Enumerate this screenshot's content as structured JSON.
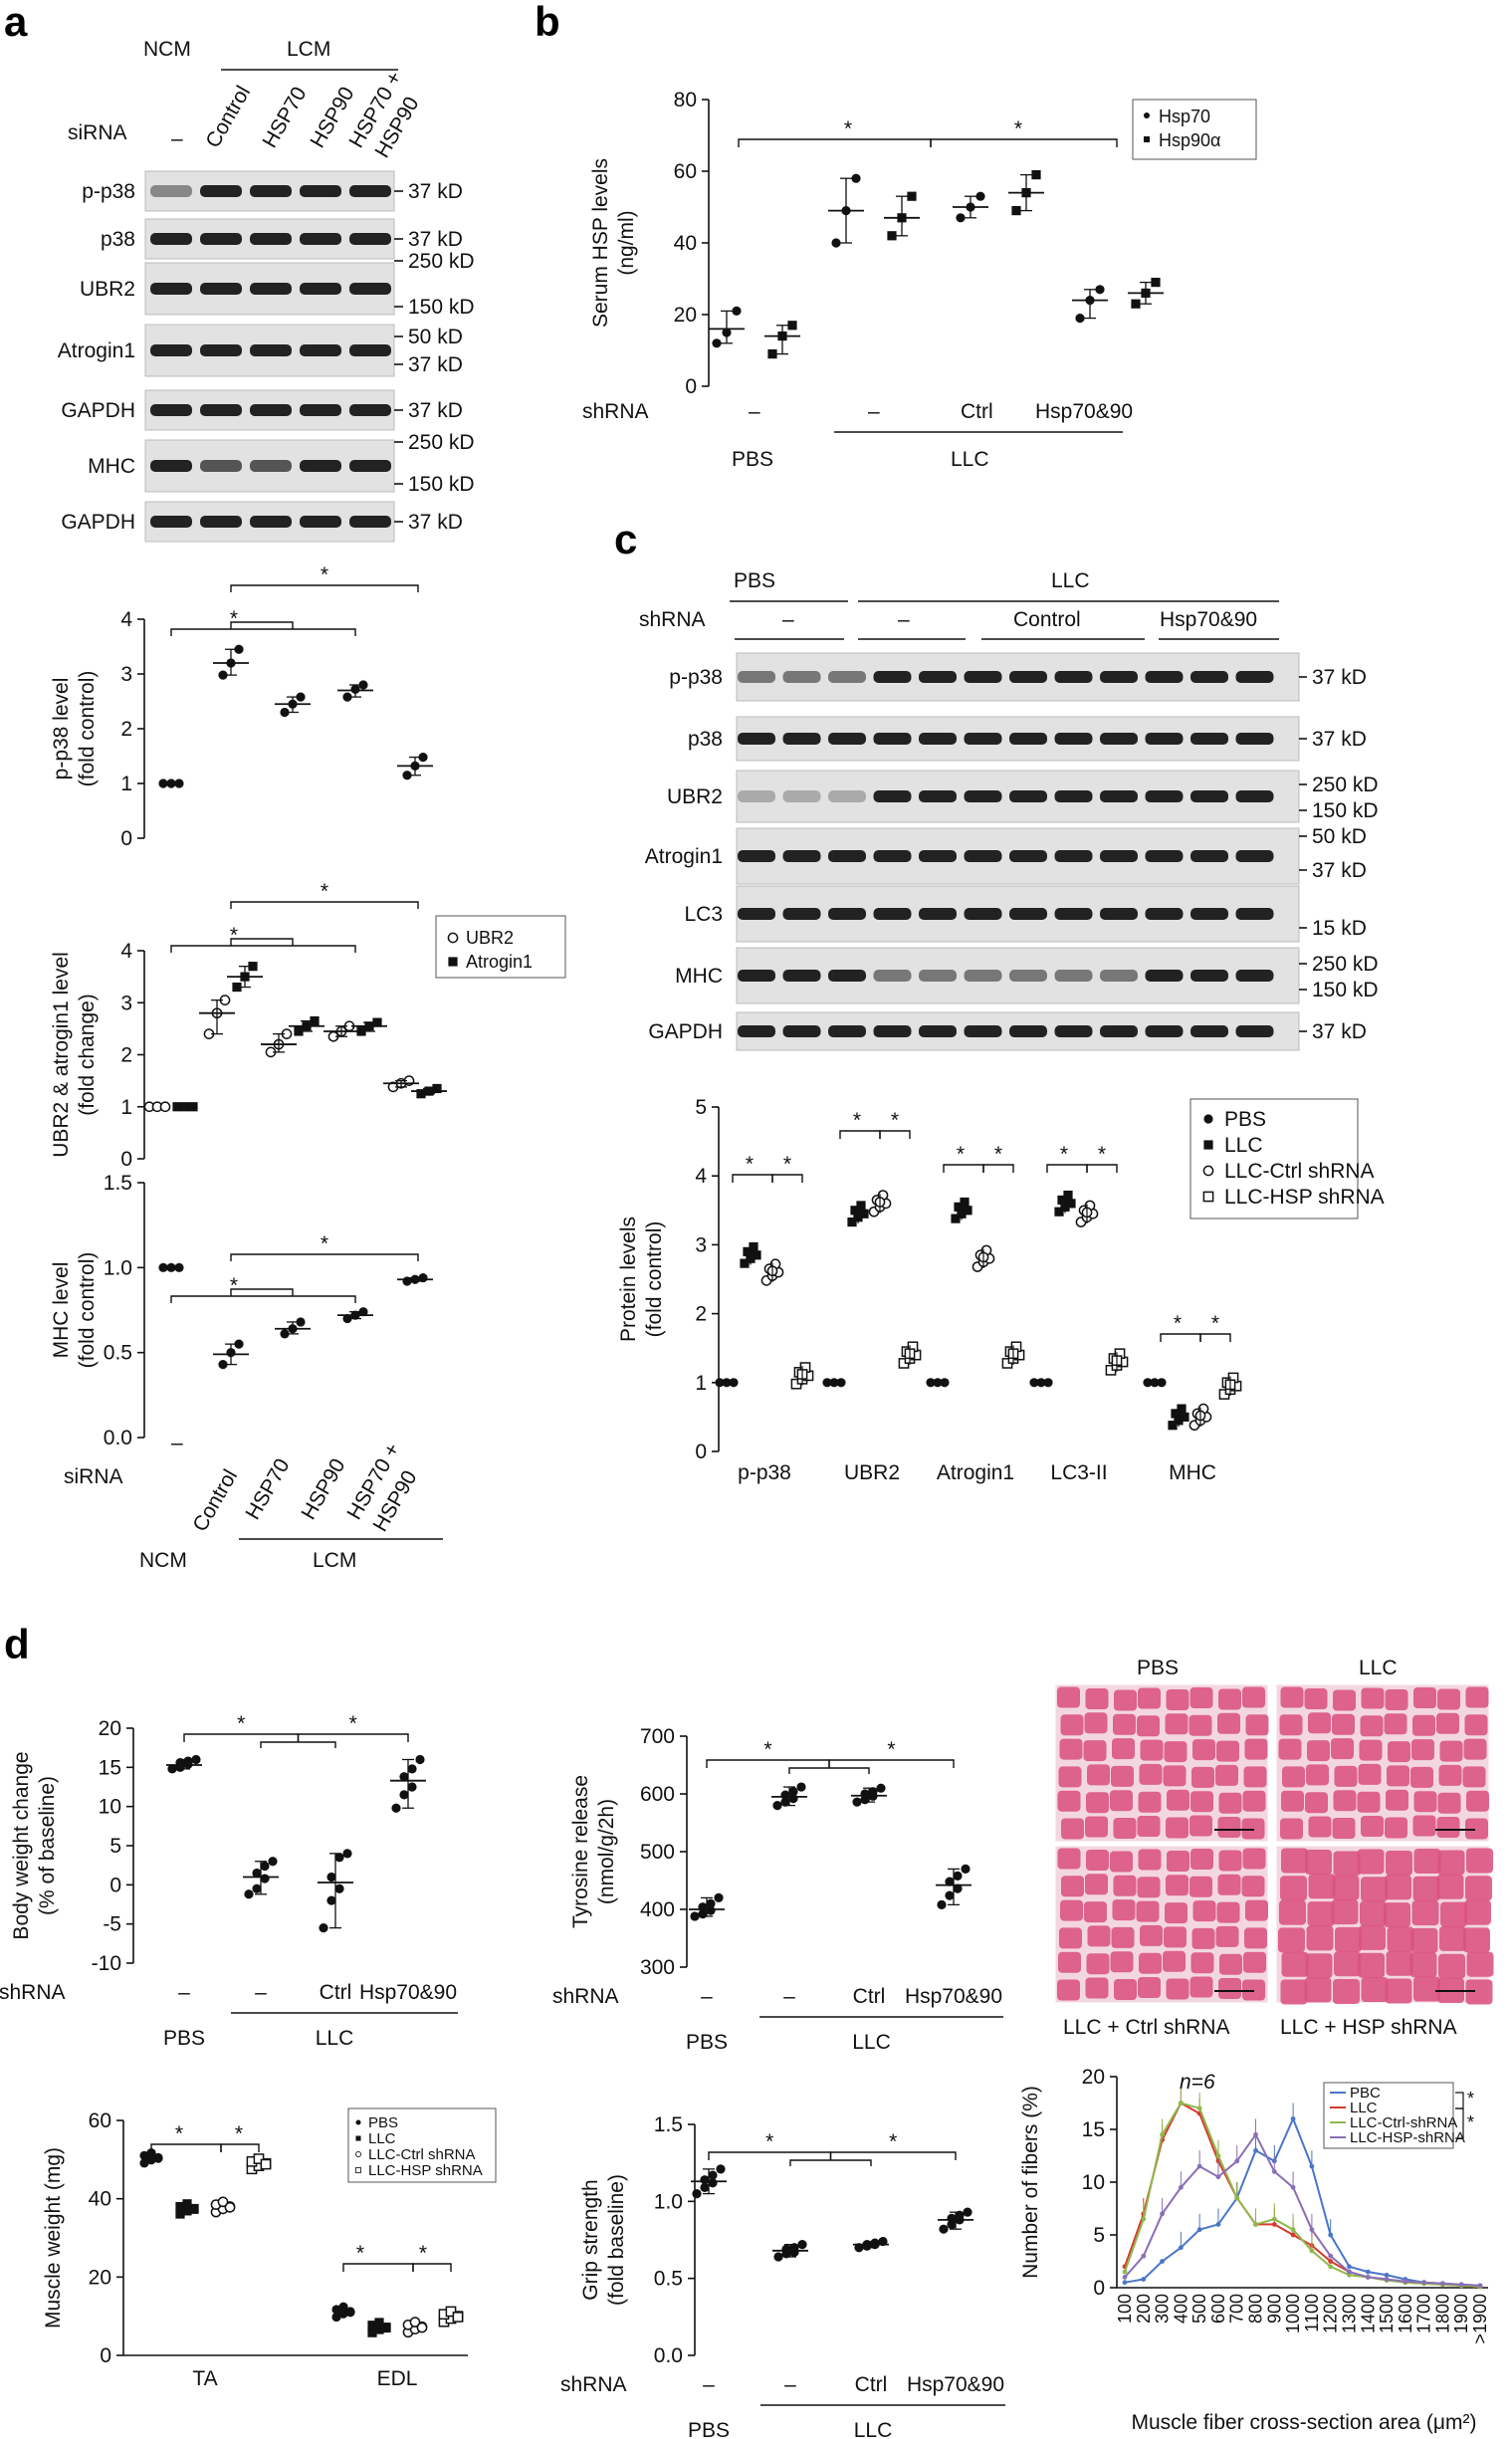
{
  "panels": {
    "a": "a",
    "b": "b",
    "c": "c",
    "d": "d"
  },
  "common": {
    "siRNA": "siRNA",
    "shRNA": "shRNA",
    "NCM": "NCM",
    "LCM": "LCM",
    "dash": "–",
    "PBS": "PBS",
    "LLC": "LLC",
    "Ctrl": "Ctrl",
    "Control": "Control",
    "Hsp70and90": "Hsp70&90",
    "star": "*",
    "HSP70": "HSP70",
    "HSP90": "HSP90",
    "HSP70_HSP90_line1": "HSP70 +",
    "HSP70_HSP90_line2": "HSP90"
  },
  "blot_a": {
    "lanes": [
      "–",
      "Control",
      "HSP70",
      "HSP90",
      "HSP70 + HSP90"
    ],
    "rows": [
      {
        "label": "p-p38",
        "mw": [
          "37 kD"
        ]
      },
      {
        "label": "p38",
        "mw": [
          "37 kD"
        ]
      },
      {
        "label": "UBR2",
        "mw": [
          "250 kD",
          "150 kD"
        ]
      },
      {
        "label": "Atrogin1",
        "mw": [
          "50 kD",
          "37 kD"
        ]
      },
      {
        "label": "GAPDH",
        "mw": [
          "37 kD"
        ]
      },
      {
        "label": "MHC",
        "mw": [
          "250 kD",
          "150 kD"
        ]
      },
      {
        "label": "GAPDH",
        "mw": [
          "37 kD"
        ]
      }
    ]
  },
  "blot_c": {
    "rows": [
      {
        "label": "p-p38",
        "mw": [
          "37 kD"
        ]
      },
      {
        "label": "p38",
        "mw": [
          "37 kD"
        ]
      },
      {
        "label": "UBR2",
        "mw": [
          "250 kD",
          "150 kD"
        ]
      },
      {
        "label": "Atrogin1",
        "mw": [
          "50 kD",
          "37 kD"
        ]
      },
      {
        "label": "LC3",
        "mw": [
          "15 kD"
        ]
      },
      {
        "label": "MHC",
        "mw": [
          "250 kD",
          "150 kD"
        ]
      },
      {
        "label": "GAPDH",
        "mw": [
          "37 kD"
        ]
      }
    ]
  },
  "histology": {
    "col_labels": [
      "PBS",
      "LLC"
    ],
    "row_labels": [
      "LLC + Ctrl shRNA",
      "LLC + HSP shRNA"
    ],
    "tissue_color": "#d9527f",
    "background_color": "#f3d7e0"
  },
  "chart_data": [
    {
      "id": "a1",
      "type": "scatter",
      "ylabel": "p-p38 level\n(fold control)",
      "ylim": [
        0,
        4
      ],
      "yticks": [
        0,
        1,
        2,
        3,
        4
      ],
      "categories": [
        "–",
        "Control",
        "HSP70",
        "HSP90",
        "HSP70 + HSP90"
      ],
      "series": [
        {
          "marker": "dot",
          "means": [
            1.0,
            3.2,
            2.45,
            2.7,
            1.32
          ],
          "points": [
            [
              1.0,
              1.0,
              1.0
            ],
            [
              2.98,
              3.2,
              3.45
            ],
            [
              2.3,
              2.45,
              2.58
            ],
            [
              2.58,
              2.72,
              2.8
            ],
            [
              1.15,
              1.32,
              1.48
            ]
          ]
        }
      ],
      "annotations": [
        "*",
        "*"
      ]
    },
    {
      "id": "a2",
      "type": "scatter",
      "ylabel": "UBR2 & atrogin1 level\n(fold change)",
      "ylim": [
        0,
        4
      ],
      "yticks": [
        0,
        1,
        2,
        3,
        4
      ],
      "categories": [
        "–",
        "Control",
        "HSP70",
        "HSP90",
        "HSP70 + HSP90"
      ],
      "series": [
        {
          "name": "UBR2",
          "marker": "open-circle",
          "means": [
            1.0,
            2.8,
            2.2,
            2.45,
            1.45
          ],
          "points": [
            [
              1.0,
              1.0,
              1.0
            ],
            [
              2.4,
              2.8,
              3.05
            ],
            [
              2.05,
              2.2,
              2.4
            ],
            [
              2.35,
              2.45,
              2.55
            ],
            [
              1.38,
              1.45,
              1.5
            ]
          ]
        },
        {
          "name": "Atrogin1",
          "marker": "square",
          "means": [
            1.0,
            3.5,
            2.55,
            2.55,
            1.3
          ],
          "points": [
            [
              1.0,
              1.0,
              1.0
            ],
            [
              3.3,
              3.5,
              3.7
            ],
            [
              2.45,
              2.55,
              2.65
            ],
            [
              2.45,
              2.55,
              2.62
            ],
            [
              1.25,
              1.3,
              1.35
            ]
          ]
        }
      ],
      "annotations": [
        "*",
        "*"
      ]
    },
    {
      "id": "a3",
      "type": "scatter",
      "ylabel": "MHC level\n(fold control)",
      "ylim": [
        0,
        1.5
      ],
      "yticks": [
        0.0,
        0.5,
        1.0,
        1.5
      ],
      "categories": [
        "–",
        "Control",
        "HSP70",
        "HSP90",
        "HSP70 + HSP90"
      ],
      "series": [
        {
          "marker": "dot",
          "means": [
            1.0,
            0.49,
            0.64,
            0.72,
            0.93
          ],
          "points": [
            [
              1.0,
              1.0,
              1.0
            ],
            [
              0.43,
              0.5,
              0.55
            ],
            [
              0.61,
              0.64,
              0.68
            ],
            [
              0.7,
              0.72,
              0.74
            ],
            [
              0.92,
              0.93,
              0.94
            ]
          ]
        }
      ],
      "annotations": [
        "*",
        "*"
      ]
    },
    {
      "id": "b",
      "type": "scatter",
      "ylabel": "Serum HSP levels\n(ng/ml)",
      "ylim": [
        0,
        80
      ],
      "yticks": [
        0,
        20,
        40,
        60,
        80
      ],
      "categories": [
        "PBS",
        "LLC",
        "LLC Ctrl shRNA",
        "LLC Hsp70&90 shRNA"
      ],
      "series": [
        {
          "name": "Hsp70",
          "marker": "dot",
          "means": [
            16,
            49,
            50,
            24
          ],
          "points": [
            [
              12,
              15,
              21
            ],
            [
              40,
              49,
              58
            ],
            [
              47,
              50,
              53
            ],
            [
              19,
              24,
              27
            ]
          ]
        },
        {
          "name": "Hsp90α",
          "marker": "square",
          "means": [
            14,
            47,
            54,
            26
          ],
          "points": [
            [
              9,
              14,
              17
            ],
            [
              42,
              47,
              53
            ],
            [
              49,
              54,
              59
            ],
            [
              23,
              26,
              29
            ]
          ]
        }
      ],
      "annotations": [
        "*",
        "*"
      ]
    },
    {
      "id": "c",
      "type": "scatter",
      "ylabel": "Protein levels\n(fold control)",
      "ylim": [
        0,
        5
      ],
      "yticks": [
        0,
        1,
        2,
        3,
        4,
        5
      ],
      "categories": [
        "p-p38",
        "UBR2",
        "Atrogin1",
        "LC3-II",
        "MHC"
      ],
      "series": [
        {
          "name": "PBS",
          "marker": "dot",
          "values": [
            1,
            1,
            1,
            1,
            1
          ]
        },
        {
          "name": "LLC",
          "marker": "square",
          "values": [
            2.85,
            3.45,
            3.5,
            3.6,
            0.5
          ]
        },
        {
          "name": "LLC-Ctrl shRNA",
          "marker": "open-circle",
          "values": [
            2.6,
            3.6,
            2.8,
            3.45,
            0.5
          ]
        },
        {
          "name": "LLC-HSP shRNA",
          "marker": "open-square",
          "values": [
            1.1,
            1.4,
            1.4,
            1.3,
            0.95
          ]
        }
      ],
      "annotations": [
        "*",
        "*",
        "*",
        "*",
        "*",
        "*",
        "*",
        "*",
        "*",
        "*"
      ]
    },
    {
      "id": "d1",
      "type": "scatter",
      "ylabel": "Body weight change\n(% of baseline)",
      "ylim": [
        -10,
        20
      ],
      "yticks": [
        -10,
        -5,
        0,
        5,
        10,
        15,
        20
      ],
      "categories": [
        "PBS",
        "LLC",
        "LLC Ctrl shRNA",
        "LLC Hsp70&90 shRNA"
      ],
      "series": [
        {
          "marker": "dot",
          "means": [
            15.3,
            1.0,
            0.3,
            13.3
          ],
          "points": [
            [
              14.8,
              15.0,
              15.4,
              15.6,
              15.8,
              16.0
            ],
            [
              -1.2,
              -0.5,
              0.8,
              1.5,
              2.4,
              3.0
            ],
            [
              -5.5,
              -2.0,
              -0.5,
              1.0,
              3.5,
              4.0
            ],
            [
              9.8,
              11.5,
              12.5,
              13.8,
              14.8,
              16.0
            ]
          ]
        }
      ],
      "annotations": [
        "*",
        "*"
      ]
    },
    {
      "id": "d2",
      "type": "scatter",
      "ylabel": "Tyrosine release\n(nmol/g/2h)",
      "ylim": [
        300,
        700
      ],
      "yticks": [
        300,
        400,
        500,
        600,
        700
      ],
      "categories": [
        "PBS",
        "LLC",
        "LLC Ctrl shRNA",
        "LLC Hsp70&90 shRNA"
      ],
      "series": [
        {
          "marker": "dot",
          "means": [
            400,
            595,
            597,
            442
          ],
          "points": [
            [
              388,
              392,
              398,
              404,
              410,
              420
            ],
            [
              580,
              586,
              592,
              598,
              604,
              612
            ],
            [
              586,
              590,
              596,
              600,
              604,
              610
            ],
            [
              408,
              424,
              436,
              448,
              458,
              470
            ]
          ]
        }
      ],
      "annotations": [
        "*",
        "*"
      ]
    },
    {
      "id": "d3",
      "type": "scatter",
      "ylabel": "Muscle weight (mg)",
      "ylim": [
        0,
        60
      ],
      "yticks": [
        0,
        20,
        40,
        60
      ],
      "categories": [
        "TA",
        "EDL"
      ],
      "series": [
        {
          "name": "PBS",
          "marker": "dot",
          "values": [
            50.5,
            11.2
          ]
        },
        {
          "name": "LLC",
          "marker": "square",
          "values": [
            37.5,
            7.2
          ]
        },
        {
          "name": "LLC-Ctrl shRNA",
          "marker": "open-circle",
          "values": [
            38.0,
            7.3
          ]
        },
        {
          "name": "LLC-HSP shRNA",
          "marker": "open-square",
          "values": [
            49.0,
            10.0
          ]
        }
      ],
      "annotations": [
        "*",
        "*",
        "*",
        "*"
      ]
    },
    {
      "id": "d4",
      "type": "scatter",
      "ylabel": "Grip strength\n(fold baseline)",
      "ylim": [
        0,
        1.5
      ],
      "yticks": [
        0.0,
        0.5,
        1.0,
        1.5
      ],
      "categories": [
        "PBS",
        "LLC",
        "LLC Ctrl shRNA",
        "LLC Hsp70&90 shRNA"
      ],
      "series": [
        {
          "marker": "dot",
          "means": [
            1.13,
            0.68,
            0.72,
            0.88
          ],
          "points": [
            [
              1.05,
              1.09,
              1.12,
              1.14,
              1.17,
              1.21
            ],
            [
              0.64,
              0.66,
              0.67,
              0.69,
              0.7,
              0.72
            ],
            [
              0.7,
              0.71,
              0.72,
              0.72,
              0.73,
              0.74
            ],
            [
              0.82,
              0.85,
              0.88,
              0.89,
              0.91,
              0.93
            ]
          ]
        }
      ],
      "annotations": [
        "*",
        "*"
      ]
    },
    {
      "id": "d5",
      "type": "line",
      "n_label": "n=6",
      "xlabel": "Muscle fiber cross-section area (μm²)",
      "ylabel": "Number of fibers (%)",
      "ylim": [
        0,
        20
      ],
      "yticks": [
        0,
        5,
        10,
        15,
        20
      ],
      "x": [
        "100",
        "200",
        "300",
        "400",
        "500",
        "600",
        "700",
        "800",
        "900",
        "1000",
        "1100",
        "1200",
        "1300",
        "1400",
        "1500",
        "1600",
        "1700",
        "1800",
        "1900",
        ">1900"
      ],
      "series": [
        {
          "name": "PBC",
          "color": "#4a76c9",
          "values": [
            0.5,
            0.8,
            2.5,
            3.8,
            5.5,
            6.0,
            8.5,
            13.0,
            12.0,
            16.0,
            11.5,
            5.0,
            2.0,
            1.5,
            1.2,
            0.8,
            0.5,
            0.4,
            0.3,
            0.2
          ]
        },
        {
          "name": "LLC",
          "color": "#d63a2f",
          "values": [
            2.0,
            7.0,
            14.0,
            17.5,
            16.5,
            12.0,
            8.5,
            6.0,
            6.0,
            5.0,
            4.0,
            2.5,
            1.5,
            1.0,
            0.8,
            0.5,
            0.4,
            0.3,
            0.2,
            0.1
          ]
        },
        {
          "name": "LLC-Ctrl-shRNA",
          "color": "#8fb84a",
          "values": [
            1.5,
            6.5,
            14.5,
            17.5,
            17.0,
            12.5,
            8.5,
            6.0,
            6.5,
            5.5,
            3.5,
            2.0,
            1.2,
            1.0,
            0.7,
            0.5,
            0.4,
            0.3,
            0.2,
            0.1
          ]
        },
        {
          "name": "LLC-HSP-shRNA",
          "color": "#8a6fb6",
          "values": [
            1.0,
            3.0,
            7.0,
            9.5,
            11.5,
            10.5,
            12.0,
            14.5,
            11.0,
            9.5,
            5.5,
            3.0,
            1.5,
            1.0,
            0.8,
            0.6,
            0.5,
            0.4,
            0.3,
            0.2
          ]
        }
      ],
      "annotations": [
        "*",
        "*"
      ]
    }
  ]
}
